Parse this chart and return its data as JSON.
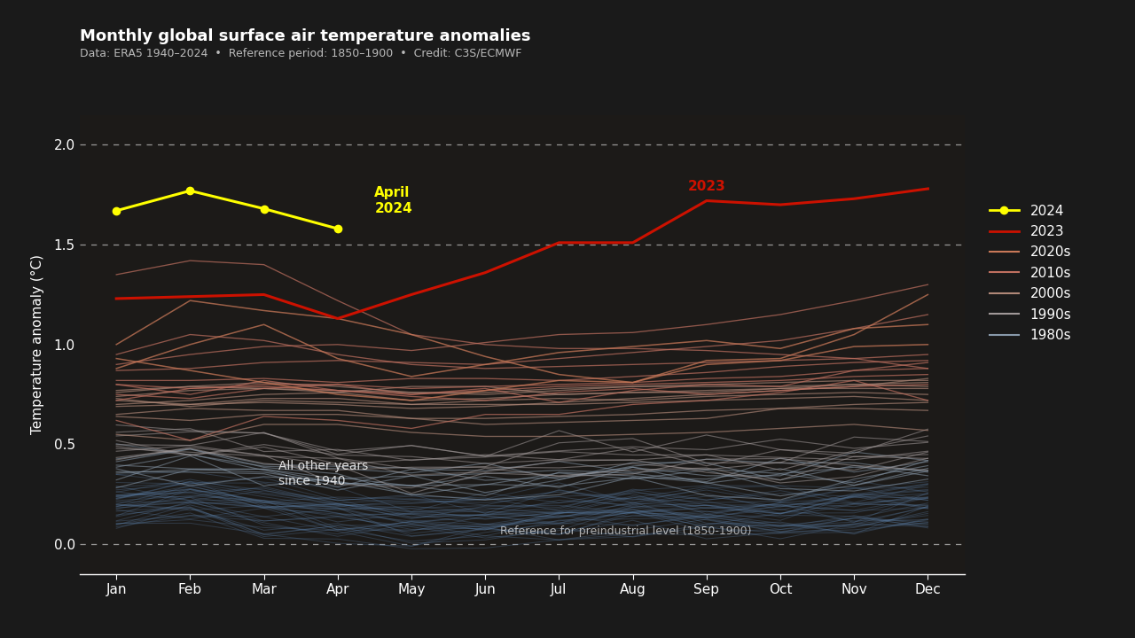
{
  "title": "Monthly global surface air temperature anomalies",
  "subtitle": "Data: ERA5 1940–2024  •  Reference period: 1850–1900  •  Credit: C3S/ECMWF",
  "ylabel": "Temperature anomaly (°C)",
  "bg_color": "#1a1a1a",
  "plot_bg_color": "#1c1a18",
  "months": [
    "Jan",
    "Feb",
    "Mar",
    "Apr",
    "May",
    "Jun",
    "Jul",
    "Aug",
    "Sep",
    "Oct",
    "Nov",
    "Dec"
  ],
  "ylim": [
    -0.15,
    2.15
  ],
  "yticks": [
    0.0,
    0.5,
    1.0,
    1.5,
    2.0
  ],
  "dashed_lines": [
    0.0,
    1.5,
    2.0
  ],
  "y2024": [
    1.67,
    1.77,
    1.68,
    1.58,
    null,
    null,
    null,
    null,
    null,
    null,
    null,
    null
  ],
  "y2023": [
    1.23,
    1.24,
    1.25,
    1.13,
    1.25,
    1.36,
    1.51,
    1.51,
    1.72,
    1.7,
    1.73,
    1.78
  ],
  "years_2020s": {
    "2020": [
      1.0,
      1.22,
      1.17,
      1.13,
      1.05,
      0.94,
      0.85,
      0.81,
      0.92,
      0.93,
      1.05,
      1.25
    ],
    "2021": [
      0.93,
      0.87,
      0.81,
      0.75,
      0.72,
      0.77,
      0.82,
      0.81,
      0.9,
      0.92,
      0.99,
      1.0
    ],
    "2022": [
      0.88,
      1.0,
      1.1,
      0.93,
      0.84,
      0.9,
      0.96,
      0.99,
      1.02,
      0.98,
      1.08,
      1.1
    ]
  },
  "years_2010s": {
    "2010": [
      0.8,
      0.75,
      0.82,
      0.77,
      0.75,
      0.78,
      0.71,
      0.77,
      0.8,
      0.79,
      0.87,
      0.91
    ],
    "2011": [
      0.62,
      0.52,
      0.64,
      0.62,
      0.58,
      0.65,
      0.65,
      0.7,
      0.72,
      0.76,
      0.82,
      0.72
    ],
    "2012": [
      0.72,
      0.78,
      0.79,
      0.77,
      0.74,
      0.72,
      0.76,
      0.78,
      0.75,
      0.77,
      0.79,
      0.8
    ],
    "2013": [
      0.75,
      0.73,
      0.78,
      0.8,
      0.75,
      0.77,
      0.79,
      0.8,
      0.81,
      0.82,
      0.84,
      0.85
    ],
    "2014": [
      0.82,
      0.82,
      0.83,
      0.81,
      0.83,
      0.83,
      0.82,
      0.84,
      0.86,
      0.89,
      0.91,
      0.92
    ],
    "2015": [
      0.9,
      0.95,
      0.99,
      1.0,
      0.97,
      1.01,
      1.05,
      1.06,
      1.1,
      1.15,
      1.22,
      1.3
    ],
    "2016": [
      1.35,
      1.42,
      1.4,
      1.22,
      1.05,
      1.0,
      0.98,
      0.98,
      0.97,
      0.95,
      0.93,
      0.88
    ],
    "2017": [
      0.95,
      1.05,
      1.02,
      0.95,
      0.9,
      0.88,
      0.89,
      0.9,
      0.91,
      0.92,
      0.93,
      0.95
    ],
    "2018": [
      0.8,
      0.78,
      0.8,
      0.8,
      0.78,
      0.79,
      0.8,
      0.81,
      0.83,
      0.84,
      0.87,
      0.88
    ],
    "2019": [
      0.87,
      0.88,
      0.91,
      0.92,
      0.91,
      0.9,
      0.93,
      0.96,
      0.99,
      1.02,
      1.08,
      1.15
    ]
  },
  "years_2000s": {
    "2000": [
      0.55,
      0.52,
      0.6,
      0.6,
      0.56,
      0.54,
      0.54,
      0.55,
      0.56,
      0.58,
      0.6,
      0.57
    ],
    "2001": [
      0.65,
      0.68,
      0.67,
      0.67,
      0.63,
      0.6,
      0.61,
      0.62,
      0.63,
      0.68,
      0.68,
      0.67
    ],
    "2002": [
      0.7,
      0.72,
      0.75,
      0.76,
      0.72,
      0.73,
      0.75,
      0.76,
      0.77,
      0.78,
      0.78,
      0.78
    ],
    "2003": [
      0.76,
      0.79,
      0.78,
      0.76,
      0.79,
      0.79,
      0.75,
      0.76,
      0.76,
      0.78,
      0.8,
      0.79
    ],
    "2004": [
      0.72,
      0.7,
      0.73,
      0.73,
      0.7,
      0.7,
      0.7,
      0.71,
      0.72,
      0.73,
      0.74,
      0.72
    ],
    "2005": [
      0.74,
      0.77,
      0.78,
      0.77,
      0.76,
      0.76,
      0.78,
      0.79,
      0.8,
      0.81,
      0.82,
      0.82
    ],
    "2006": [
      0.73,
      0.69,
      0.72,
      0.71,
      0.7,
      0.72,
      0.73,
      0.72,
      0.74,
      0.75,
      0.76,
      0.75
    ],
    "2007": [
      0.77,
      0.79,
      0.81,
      0.79,
      0.76,
      0.75,
      0.77,
      0.79,
      0.79,
      0.79,
      0.8,
      0.81
    ],
    "2008": [
      0.64,
      0.62,
      0.65,
      0.65,
      0.63,
      0.63,
      0.64,
      0.65,
      0.67,
      0.68,
      0.7,
      0.71
    ],
    "2009": [
      0.69,
      0.7,
      0.71,
      0.7,
      0.68,
      0.69,
      0.71,
      0.73,
      0.75,
      0.77,
      0.79,
      0.83
    ]
  },
  "color_1940s_to_1970s": "#5b7fa8",
  "color_1980s": "#8899aa",
  "color_1990s": "#a09898",
  "color_2000s": "#b08878",
  "color_2010s": "#c07060",
  "color_2020s": "#c87858",
  "color_2023": "#cc1100",
  "color_2024": "#ffff00",
  "annotation_text_april2024": "April\n2024",
  "annotation_text_2023": "2023",
  "text_all_other_years": "All other years\nsince 1940",
  "text_reference": "Reference for preindustrial level (1850-1900)"
}
